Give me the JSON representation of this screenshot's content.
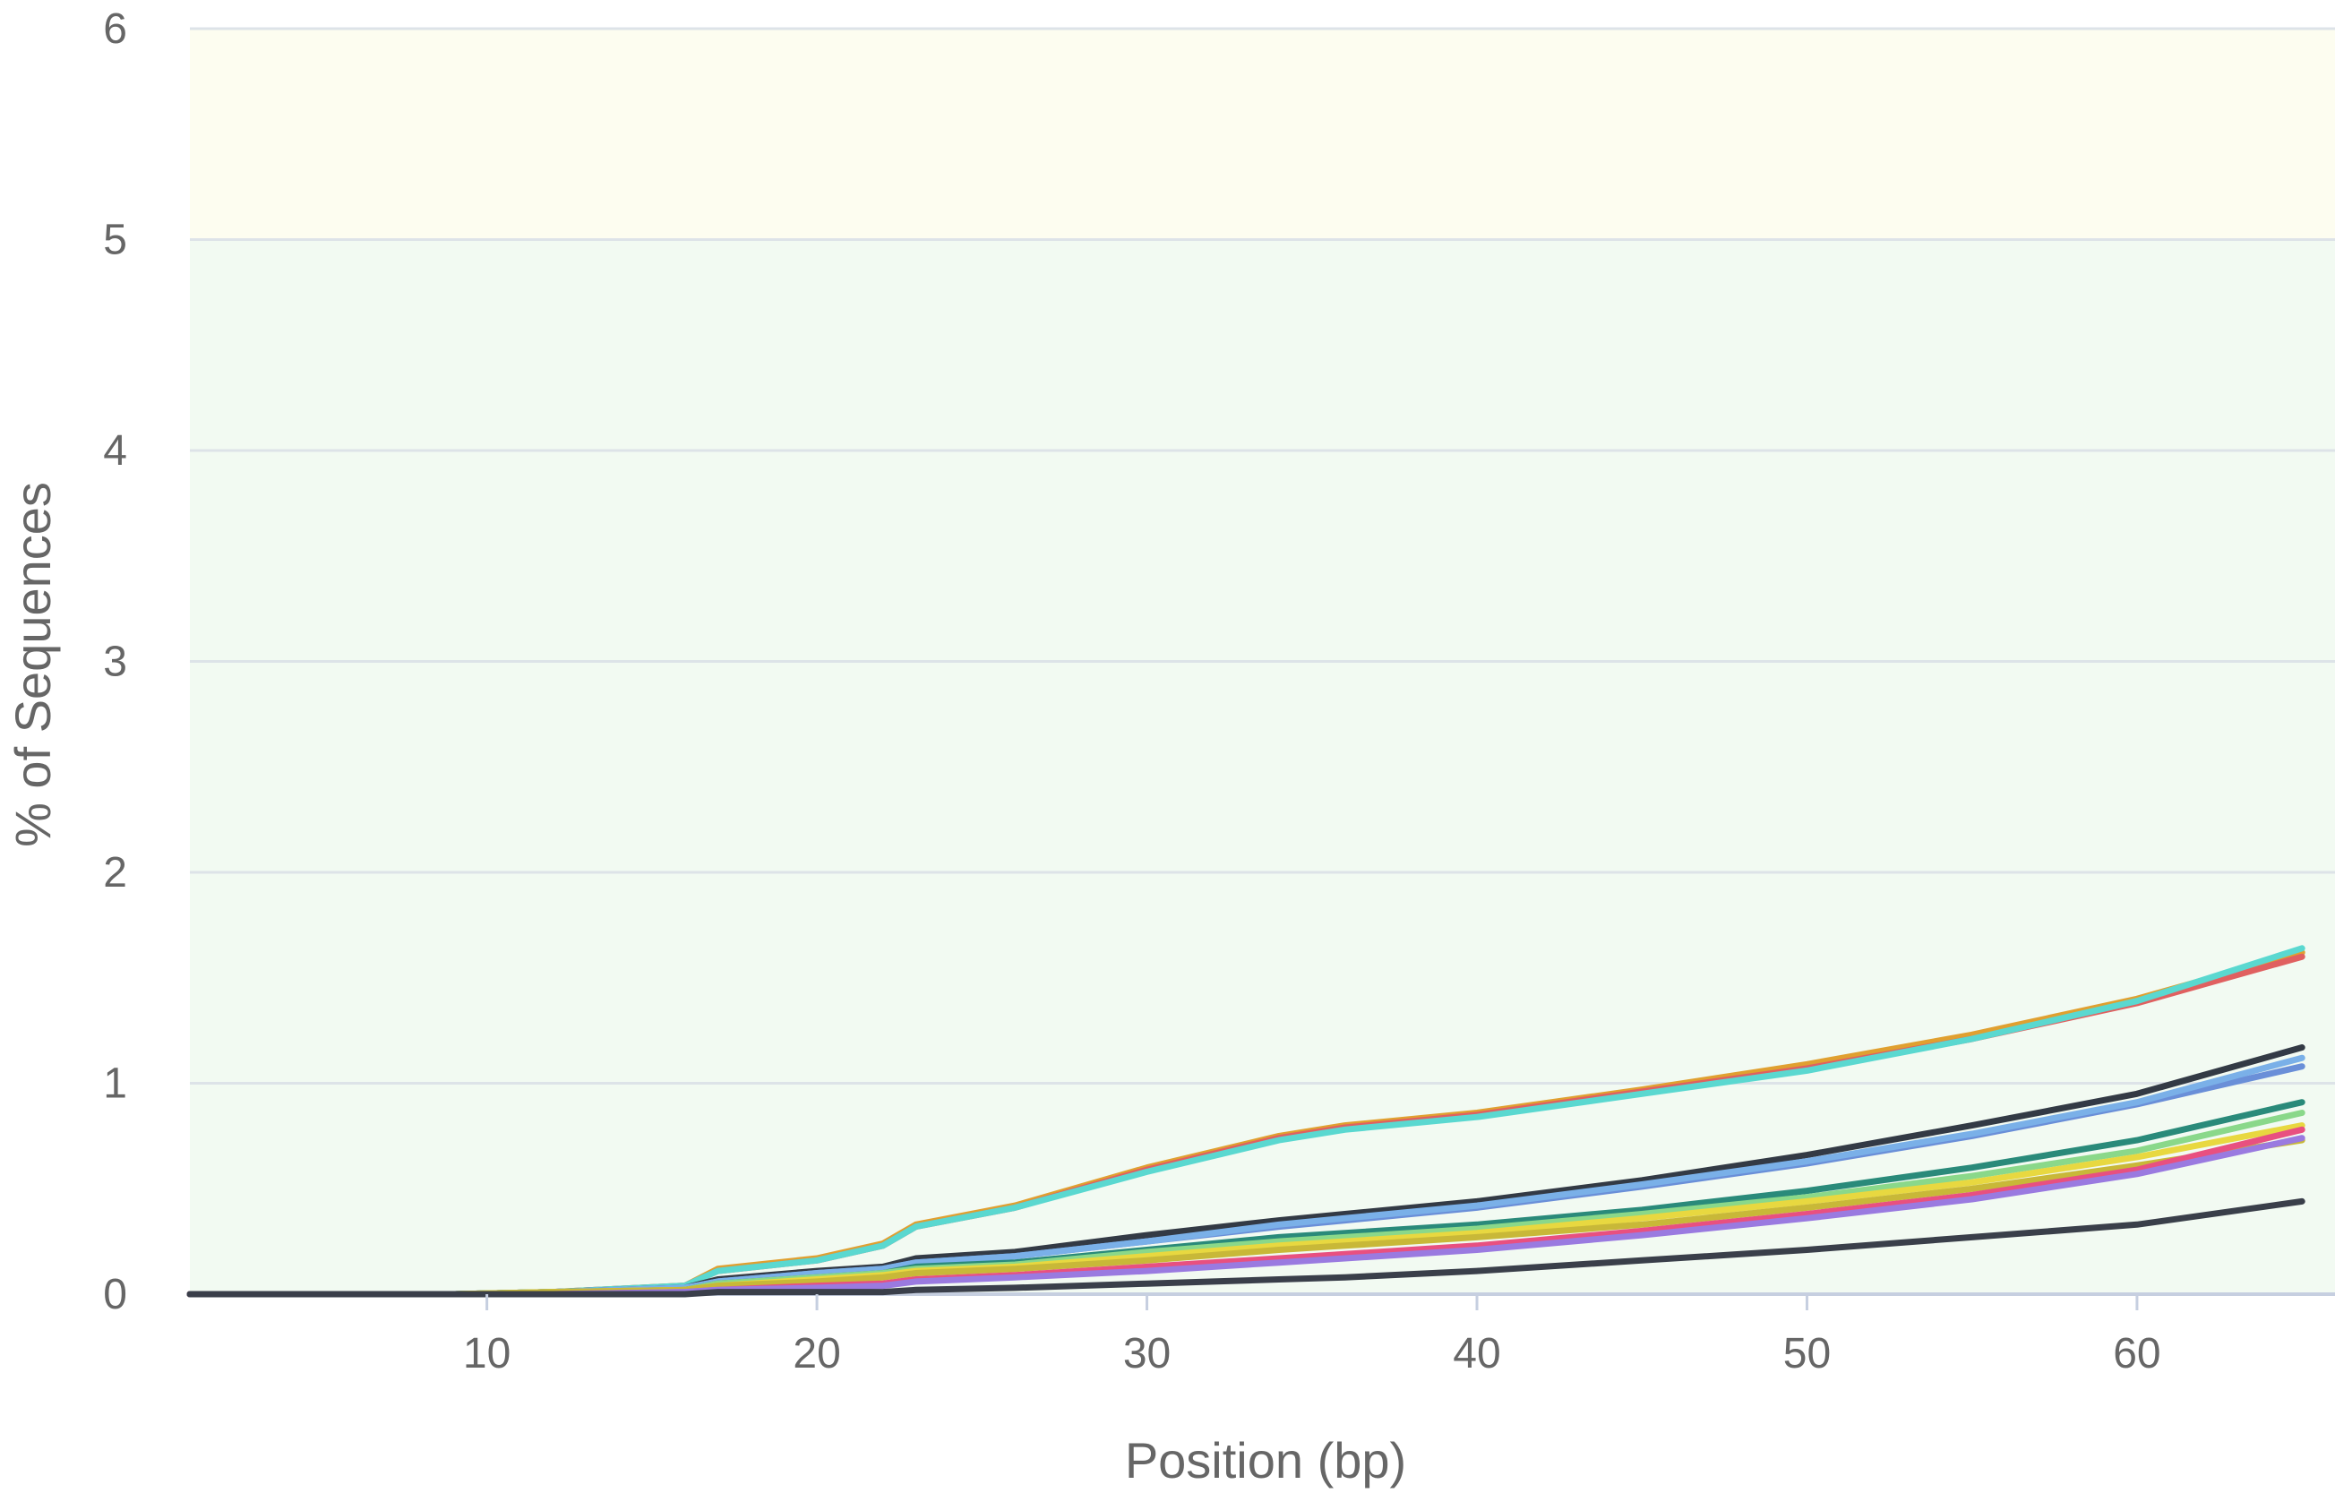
{
  "chart_data": {
    "type": "line",
    "xlabel": "Position (bp)",
    "ylabel": "% of Sequences",
    "xlim": [
      1,
      66
    ],
    "ylim": [
      0,
      6
    ],
    "x_ticks": [
      "10",
      "20",
      "30",
      "40",
      "50",
      "60"
    ],
    "y_ticks": [
      "0",
      "1",
      "2",
      "3",
      "4",
      "5",
      "6"
    ],
    "grid": true,
    "bands": [
      {
        "from": 0,
        "to": 5,
        "color": "#f2faf2"
      },
      {
        "from": 5,
        "to": 6,
        "color": "#fdfdf0"
      }
    ],
    "x": [
      1,
      9,
      12,
      16,
      17,
      20,
      22,
      23,
      26,
      30,
      34,
      36,
      40,
      45,
      50,
      55,
      60,
      65
    ],
    "series": [
      {
        "color": "#e0a030",
        "values": [
          0,
          0,
          0.01,
          0.04,
          0.12,
          0.17,
          0.24,
          0.33,
          0.42,
          0.6,
          0.75,
          0.8,
          0.86,
          0.97,
          1.09,
          1.23,
          1.4,
          1.62
        ]
      },
      {
        "color": "#e06060",
        "values": [
          0,
          0,
          0.01,
          0.04,
          0.11,
          0.16,
          0.23,
          0.32,
          0.41,
          0.59,
          0.74,
          0.79,
          0.85,
          0.96,
          1.07,
          1.21,
          1.38,
          1.6
        ]
      },
      {
        "color": "#5ad8d0",
        "values": [
          0,
          0,
          0.01,
          0.04,
          0.11,
          0.16,
          0.23,
          0.32,
          0.41,
          0.58,
          0.73,
          0.78,
          0.84,
          0.95,
          1.06,
          1.21,
          1.39,
          1.64
        ]
      },
      {
        "color": "#333a45",
        "values": [
          0,
          0,
          0.01,
          0.03,
          0.07,
          0.11,
          0.13,
          0.17,
          0.2,
          0.28,
          0.35,
          0.38,
          0.44,
          0.54,
          0.66,
          0.8,
          0.95,
          1.17
        ]
      },
      {
        "color": "#6a8fd8",
        "values": [
          0,
          0,
          0.01,
          0.03,
          0.06,
          0.1,
          0.12,
          0.15,
          0.18,
          0.25,
          0.32,
          0.35,
          0.41,
          0.51,
          0.62,
          0.75,
          0.9,
          1.08
        ]
      },
      {
        "color": "#7ab0e8",
        "values": [
          0,
          0,
          0.01,
          0.03,
          0.06,
          0.1,
          0.12,
          0.15,
          0.18,
          0.25,
          0.33,
          0.36,
          0.42,
          0.52,
          0.63,
          0.76,
          0.91,
          1.12
        ]
      },
      {
        "color": "#2a8a7a",
        "values": [
          0,
          0,
          0.01,
          0.02,
          0.05,
          0.08,
          0.1,
          0.13,
          0.15,
          0.21,
          0.27,
          0.29,
          0.33,
          0.4,
          0.49,
          0.6,
          0.73,
          0.91
        ]
      },
      {
        "color": "#8ad88a",
        "values": [
          0,
          0,
          0.01,
          0.02,
          0.05,
          0.08,
          0.1,
          0.12,
          0.14,
          0.2,
          0.25,
          0.27,
          0.31,
          0.38,
          0.46,
          0.56,
          0.68,
          0.86
        ]
      },
      {
        "color": "#e8d840",
        "values": [
          0,
          0,
          0.01,
          0.02,
          0.04,
          0.07,
          0.09,
          0.11,
          0.13,
          0.18,
          0.23,
          0.25,
          0.29,
          0.36,
          0.44,
          0.53,
          0.65,
          0.8
        ]
      },
      {
        "color": "#c8b838",
        "values": [
          0,
          0,
          0.01,
          0.02,
          0.04,
          0.06,
          0.08,
          0.1,
          0.12,
          0.16,
          0.21,
          0.23,
          0.27,
          0.33,
          0.41,
          0.5,
          0.61,
          0.73
        ]
      },
      {
        "color": "#e85080",
        "values": [
          0,
          0,
          0,
          0.01,
          0.02,
          0.04,
          0.05,
          0.07,
          0.09,
          0.13,
          0.17,
          0.19,
          0.23,
          0.3,
          0.38,
          0.47,
          0.59,
          0.78
        ]
      },
      {
        "color": "#9a7ae0",
        "values": [
          0,
          0,
          0,
          0.01,
          0.02,
          0.03,
          0.04,
          0.06,
          0.08,
          0.11,
          0.15,
          0.17,
          0.21,
          0.28,
          0.36,
          0.45,
          0.57,
          0.74
        ]
      },
      {
        "color": "#3a3f4a",
        "values": [
          0,
          0,
          0,
          0,
          0.01,
          0.01,
          0.01,
          0.02,
          0.03,
          0.05,
          0.07,
          0.08,
          0.11,
          0.16,
          0.21,
          0.27,
          0.33,
          0.44
        ]
      }
    ]
  }
}
